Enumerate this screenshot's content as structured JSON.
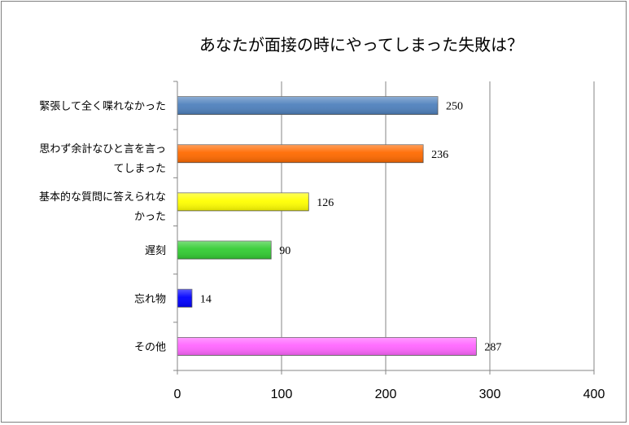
{
  "chart_data": {
    "type": "bar",
    "orientation": "horizontal",
    "title": "あなたが面接の時にやってしまった失敗は？",
    "categories": [
      [
        "緊張して全く喋れなかった"
      ],
      [
        "思わず余計なひと言を言っ",
        "てしまった"
      ],
      [
        "基本的な質問に答えられな",
        "かった"
      ],
      [
        "遅刻"
      ],
      [
        "忘れ物"
      ],
      [
        "その他"
      ]
    ],
    "values": [
      250,
      236,
      126,
      90,
      14,
      287
    ],
    "value_labels": [
      "250",
      "236",
      "126",
      "90",
      "14",
      "287"
    ],
    "colors": [
      "#4f81bd",
      "#ff6a00",
      "#ffff00",
      "#33cc33",
      "#0000ff",
      "#ff66ff"
    ],
    "xlim": [
      0,
      400
    ],
    "xticks": [
      "0",
      "100",
      "200",
      "300",
      "400"
    ],
    "grid": true,
    "legend": "none"
  }
}
